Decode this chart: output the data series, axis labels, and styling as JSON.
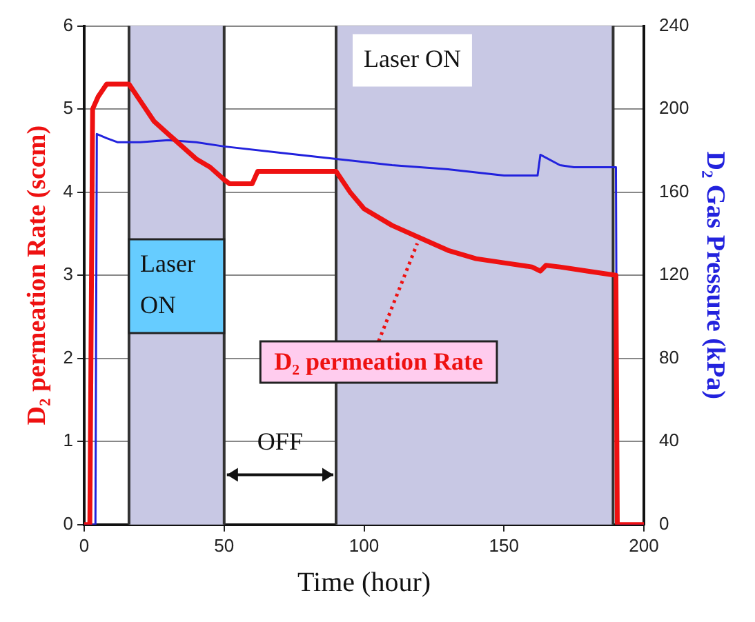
{
  "chart_data": {
    "type": "line",
    "xlabel": "Time (hour)",
    "ylabel": "D₂ permeation Rate (sccm)",
    "y2label": "D₂ Gas Pressure (kPa)",
    "xlim": [
      0,
      200
    ],
    "xticks": [
      0,
      50,
      100,
      150,
      200
    ],
    "ylim": [
      0,
      6
    ],
    "yticks": [
      0,
      1,
      2,
      3,
      4,
      5,
      6
    ],
    "y2lim": [
      0,
      240
    ],
    "y2ticks": [
      0,
      40,
      80,
      120,
      160,
      200,
      240
    ],
    "grid": true,
    "series": [
      {
        "name": "D₂ permeation Rate",
        "color": "#ee1111",
        "x": [
          0,
          2,
          3,
          5,
          8,
          16,
          20,
          25,
          30,
          35,
          40,
          45,
          50,
          52,
          60,
          62,
          75,
          90,
          95,
          100,
          110,
          120,
          130,
          140,
          150,
          160,
          163,
          165,
          170,
          180,
          190,
          190.5,
          200
        ],
        "values": [
          0,
          0,
          5.0,
          5.15,
          5.3,
          5.3,
          5.1,
          4.85,
          4.7,
          4.55,
          4.4,
          4.3,
          4.15,
          4.1,
          4.1,
          4.25,
          4.25,
          4.25,
          4.0,
          3.8,
          3.6,
          3.45,
          3.3,
          3.2,
          3.15,
          3.1,
          3.05,
          3.12,
          3.1,
          3.05,
          3.0,
          0,
          0
        ]
      },
      {
        "color": "#2222dd",
        "axis": "y2",
        "x": [
          0,
          4,
          4.5,
          8,
          12,
          20,
          30,
          40,
          50,
          70,
          90,
          110,
          130,
          150,
          162,
          163,
          170,
          175,
          190,
          190.5,
          200
        ],
        "values": [
          0,
          0,
          188,
          186,
          184,
          184,
          185,
          184,
          182,
          179,
          176,
          173,
          171,
          168,
          168,
          178,
          173,
          172,
          172,
          0,
          0
        ]
      }
    ],
    "bands": [
      {
        "axis": "x",
        "from": 16,
        "to": 50,
        "label": "Laser ON",
        "color": "#c8c8e4"
      },
      {
        "axis": "x",
        "from": 90,
        "to": 189,
        "label": "Laser ON",
        "color": "#c8c8e4"
      }
    ],
    "annotations": [
      "OFF"
    ]
  }
}
